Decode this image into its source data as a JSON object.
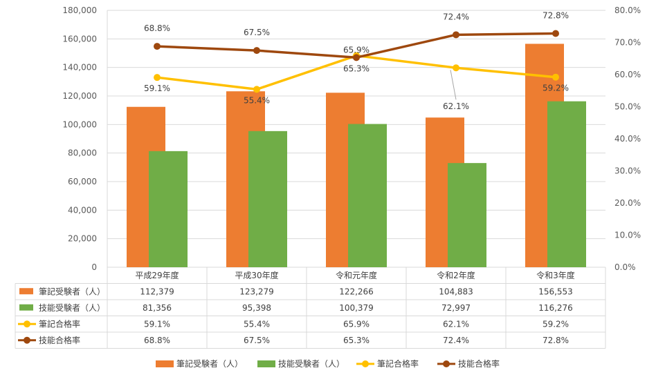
{
  "chart_data": {
    "type": "bar",
    "categories": [
      "平成29年度",
      "平成30年度",
      "令和元年度",
      "令和2年度",
      "令和3年度"
    ],
    "series": [
      {
        "name": "筆記受験者（人）",
        "type": "bar",
        "axis": "left",
        "color": "#ed7d31",
        "display": [
          "112,379",
          "123,279",
          "122,266",
          "104,883",
          "156,553"
        ],
        "values": [
          112379,
          123279,
          122266,
          104883,
          156553
        ]
      },
      {
        "name": "技能受験者（人）",
        "type": "bar",
        "axis": "left",
        "color": "#70ad47",
        "display": [
          "81,356",
          "95,398",
          "100,379",
          "72,997",
          "116,276"
        ],
        "values": [
          81356,
          95398,
          100379,
          72997,
          116276
        ]
      },
      {
        "name": "筆記合格率",
        "type": "line",
        "axis": "right",
        "color": "#ffc000",
        "display": [
          "59.1%",
          "55.4%",
          "65.9%",
          "62.1%",
          "59.2%"
        ],
        "values": [
          59.1,
          55.4,
          65.9,
          62.1,
          59.2
        ]
      },
      {
        "name": "技能合格率",
        "type": "line",
        "axis": "right",
        "color": "#9e480e",
        "display": [
          "68.8%",
          "67.5%",
          "65.3%",
          "72.4%",
          "72.8%"
        ],
        "values": [
          68.8,
          67.5,
          65.3,
          72.4,
          72.8
        ]
      }
    ],
    "y_left": {
      "min": 0,
      "max": 180000,
      "step": 20000,
      "tick_labels": [
        "0",
        "20,000",
        "40,000",
        "60,000",
        "80,000",
        "100,000",
        "120,000",
        "140,000",
        "160,000",
        "180,000"
      ]
    },
    "y_right": {
      "min": 0,
      "max": 80,
      "step": 10,
      "tick_labels": [
        "0.0%",
        "10.0%",
        "20.0%",
        "30.0%",
        "40.0%",
        "50.0%",
        "60.0%",
        "70.0%",
        "80.0%"
      ]
    },
    "grid": true,
    "legend": "bottom",
    "data_table": true
  }
}
